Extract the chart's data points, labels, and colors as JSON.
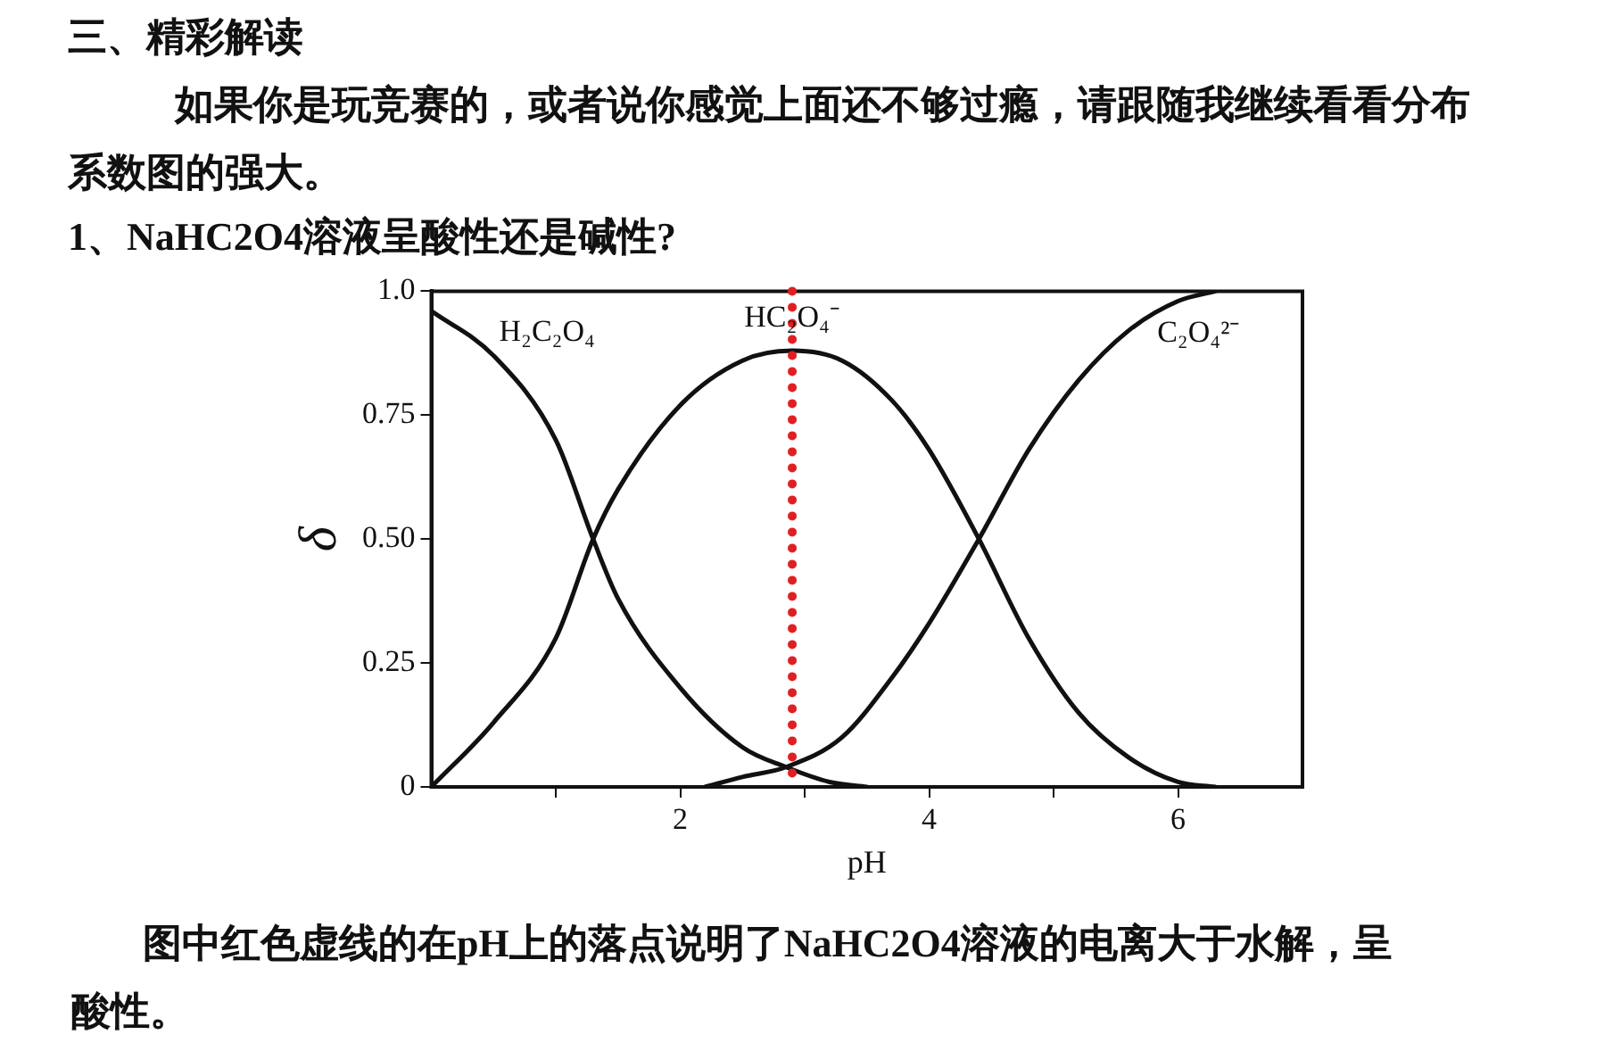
{
  "chart_data": {
    "type": "line",
    "title": "三、精彩解读",
    "subtitle": "如果你是玩竞赛的，或者说你感觉上面还不够过瘾，请跟随我继续看看分布系数图的强大。",
    "xlabel": "pH",
    "ylabel": "δ",
    "series": [
      {
        "name": "H₂C₂O₄",
        "color": "#111111",
        "x": [
          0,
          0.5,
          1,
          1.3,
          1.5,
          2,
          2.5,
          2.85,
          3.2,
          3.5
        ],
        "values": [
          0.96,
          0.87,
          0.7,
          0.5,
          0.38,
          0.2,
          0.08,
          0.04,
          0.01,
          0
        ]
      },
      {
        "name": "HC₂O₄⁻",
        "color": "#111111",
        "x": [
          0,
          0.5,
          1,
          1.3,
          1.5,
          2,
          2.5,
          2.9,
          3.3,
          3.7,
          4,
          4.4,
          4.8,
          5.2,
          5.6,
          6,
          6.3
        ],
        "values": [
          0,
          0.13,
          0.3,
          0.5,
          0.6,
          0.77,
          0.86,
          0.88,
          0.86,
          0.78,
          0.68,
          0.5,
          0.3,
          0.15,
          0.06,
          0.01,
          0
        ]
      },
      {
        "name": "C₂O₄²⁻",
        "color": "#111111",
        "x": [
          2.2,
          2.5,
          2.85,
          3.3,
          3.7,
          4,
          4.4,
          4.8,
          5.2,
          5.6,
          6,
          6.3
        ],
        "values": [
          0,
          0.02,
          0.04,
          0.1,
          0.22,
          0.33,
          0.5,
          0.68,
          0.82,
          0.92,
          0.98,
          1
        ]
      }
    ],
    "xlim": [
      0,
      7
    ],
    "xticks": [
      {
        "value": 1,
        "label": null
      },
      2,
      {
        "value": 3,
        "label": null
      },
      4,
      {
        "value": 5,
        "label": null
      },
      6
    ],
    "ylim": [
      0,
      1
    ],
    "yticks": [
      0,
      0.25,
      {
        "value": 0.5,
        "label": "0.50"
      },
      0.75,
      {
        "value": 1,
        "label": "1.0"
      }
    ],
    "ref_lines": [
      {
        "axis": "x",
        "value": 2.9,
        "color": "#e02020",
        "line_style": "dotted"
      }
    ],
    "annotations": [
      "1、NaHC2O4溶液呈酸性还是碱性?",
      "图中红色虚线的在pH上的落点说明了NaHC2O4溶液的电离大于水解，呈酸性。"
    ],
    "grid": false,
    "legend": false,
    "marker": "none",
    "line_style": "solid"
  }
}
